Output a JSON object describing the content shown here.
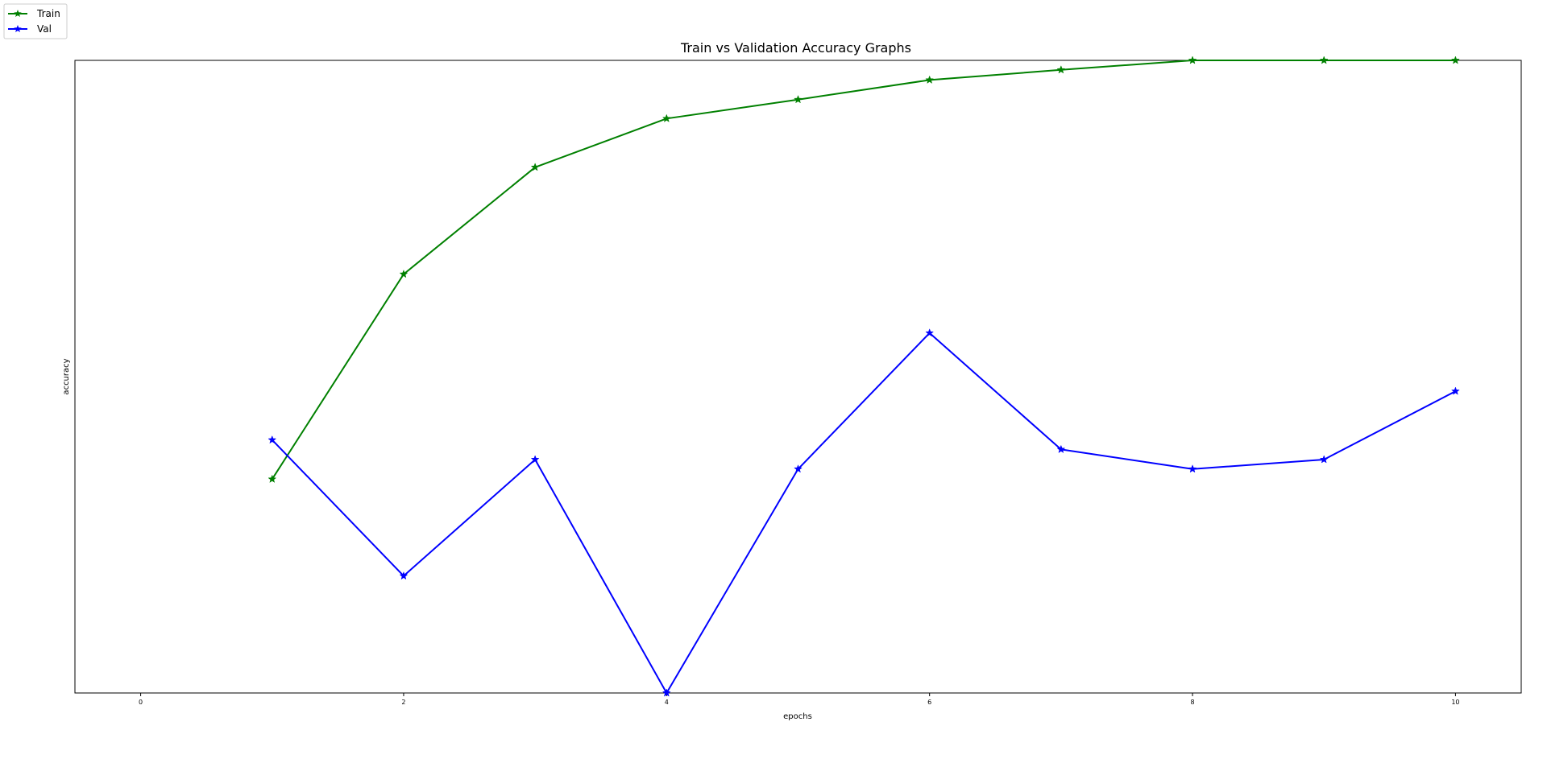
{
  "chart_data": {
    "type": "line",
    "title": "Train vs Validation Accuracy Graphs",
    "xlabel": "epochs",
    "ylabel": "accuracy",
    "xlim": [
      -0.5,
      10.5
    ],
    "ylim": [
      0,
      1
    ],
    "xticks": [
      0,
      2,
      4,
      6,
      8,
      10
    ],
    "yticks": [],
    "grid": false,
    "legend_position": "top-left",
    "series": [
      {
        "name": "Train",
        "color": "#008000",
        "marker": "star",
        "x": [
          1,
          2,
          3,
          4,
          5,
          6,
          7,
          8,
          9,
          10
        ],
        "values": [
          0.338,
          0.662,
          0.831,
          0.908,
          0.938,
          0.969,
          0.985,
          1.0,
          1.0,
          1.0
        ]
      },
      {
        "name": "Val",
        "color": "#0000ff",
        "marker": "star",
        "x": [
          1,
          2,
          3,
          4,
          5,
          6,
          7,
          8,
          9,
          10
        ],
        "values": [
          0.4,
          0.185,
          0.369,
          0.0,
          0.354,
          0.569,
          0.385,
          0.354,
          0.369,
          0.477
        ]
      }
    ]
  }
}
